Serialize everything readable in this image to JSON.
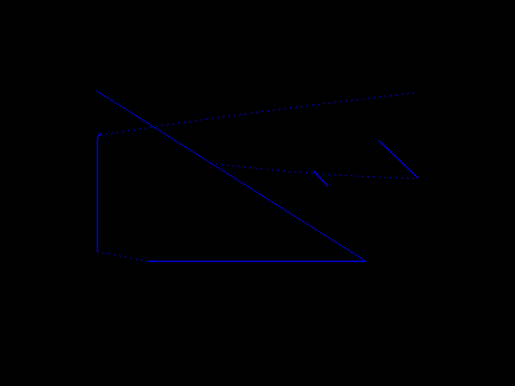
{
  "background_color": "#000000",
  "stroke_color": "#0000ff",
  "strokes": [
    {
      "name": "long-diagonal-stroke",
      "style": "dotted-solid"
    },
    {
      "name": "upper-dotted-stroke",
      "style": "dotted"
    },
    {
      "name": "left-vertical-stroke",
      "style": "solid"
    },
    {
      "name": "bottom-horizontal-stroke",
      "style": "solid"
    },
    {
      "name": "bottom-left-dotted-stroke",
      "style": "dotted"
    },
    {
      "name": "middle-dotted-stroke",
      "style": "dotted"
    },
    {
      "name": "right-short-diagonal-stroke",
      "style": "solid"
    },
    {
      "name": "middle-short-diagonal-stroke",
      "style": "solid"
    }
  ]
}
